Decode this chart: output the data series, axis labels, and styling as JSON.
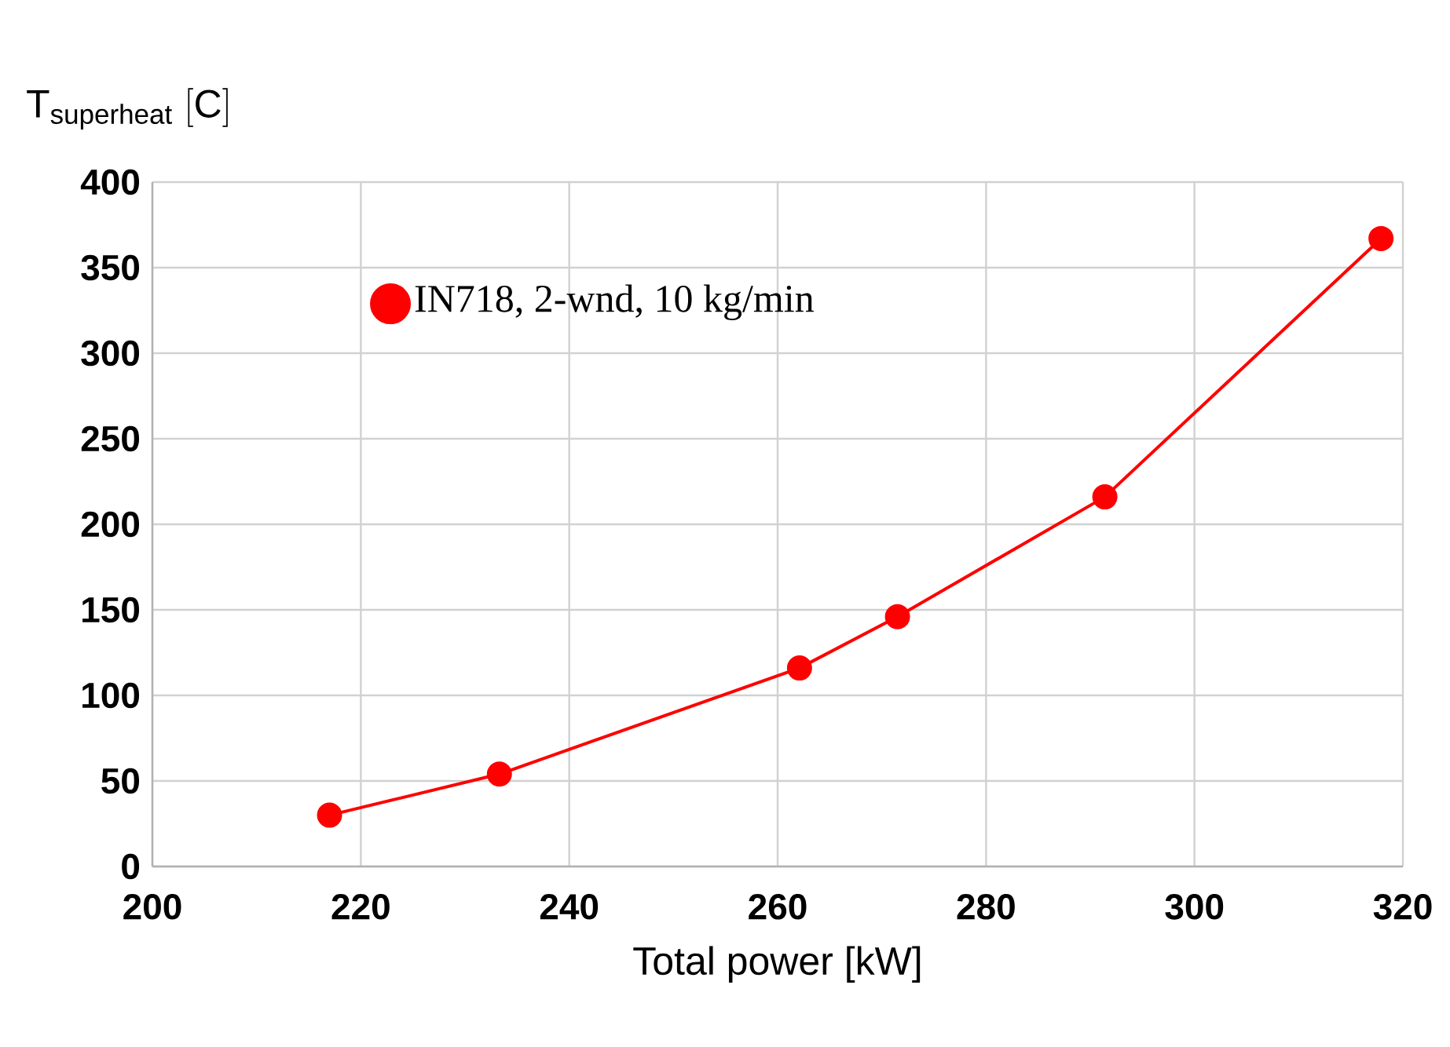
{
  "chart_data": {
    "type": "line",
    "xlabel": "Total power [kW]",
    "ylabel": "\\mathrm{T_{superheat}\\ [C]}",
    "series": [
      {
        "name": "IN718, 2-wnd, 10 kg/min",
        "color": "#ff0000",
        "x": [
          217.0,
          233.3,
          262.1,
          271.5,
          291.4,
          317.9
        ],
        "values": [
          30,
          54,
          116,
          146,
          216,
          367
        ]
      }
    ],
    "xlim": [
      200,
      320
    ],
    "xticks": [
      200,
      220,
      240,
      260,
      280,
      300,
      320
    ],
    "ylim": [
      0,
      400
    ],
    "yticks": [
      0,
      50,
      100,
      150,
      200,
      250,
      300,
      350,
      400
    ],
    "grid": true,
    "legend": "top left",
    "marker": "circle",
    "line_style": "solid"
  }
}
